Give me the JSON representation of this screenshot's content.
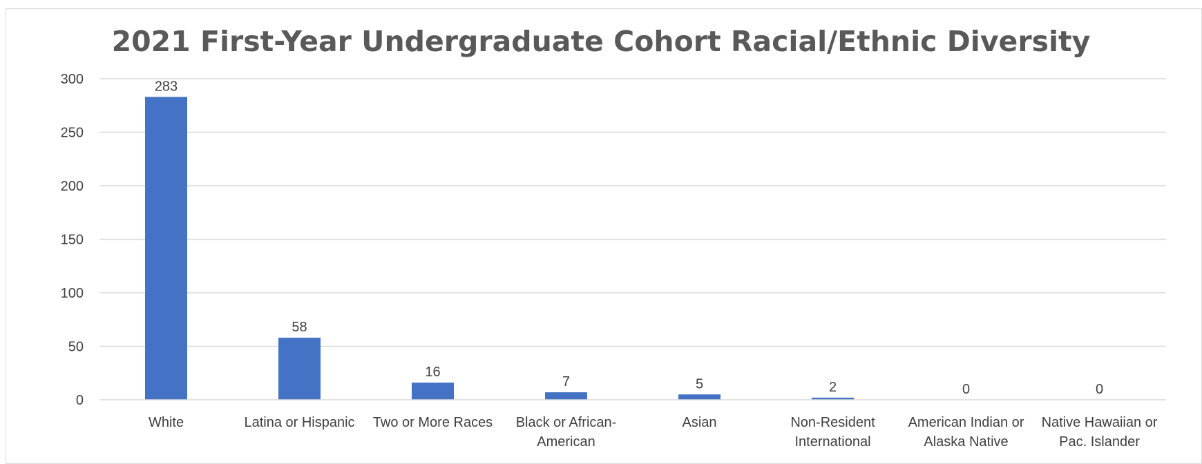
{
  "chart_data": {
    "type": "bar",
    "title": "2021 First-Year Undergraduate Cohort Racial/Ethnic Diversity",
    "xlabel": "",
    "ylabel": "",
    "ylim": [
      0,
      300
    ],
    "yticks": [
      0,
      50,
      100,
      150,
      200,
      250,
      300
    ],
    "grid": true,
    "legend": "none",
    "categories": [
      [
        "White"
      ],
      [
        "Latina or Hispanic"
      ],
      [
        "Two or More Races"
      ],
      [
        "Black or African-",
        "American"
      ],
      [
        "Asian"
      ],
      [
        "Non-Resident",
        "International"
      ],
      [
        "American Indian or",
        "Alaska Native"
      ],
      [
        "Native Hawaiian or",
        "Pac. Islander"
      ]
    ],
    "values": [
      283,
      58,
      16,
      7,
      5,
      2,
      0,
      0
    ],
    "data_labels": [
      "283",
      "58",
      "16",
      "7",
      "5",
      "2",
      "0",
      "0"
    ],
    "colors": {
      "bar": "#4472C4",
      "grid": "#d9d9d9",
      "text": "#404040",
      "title": "#595959"
    }
  }
}
